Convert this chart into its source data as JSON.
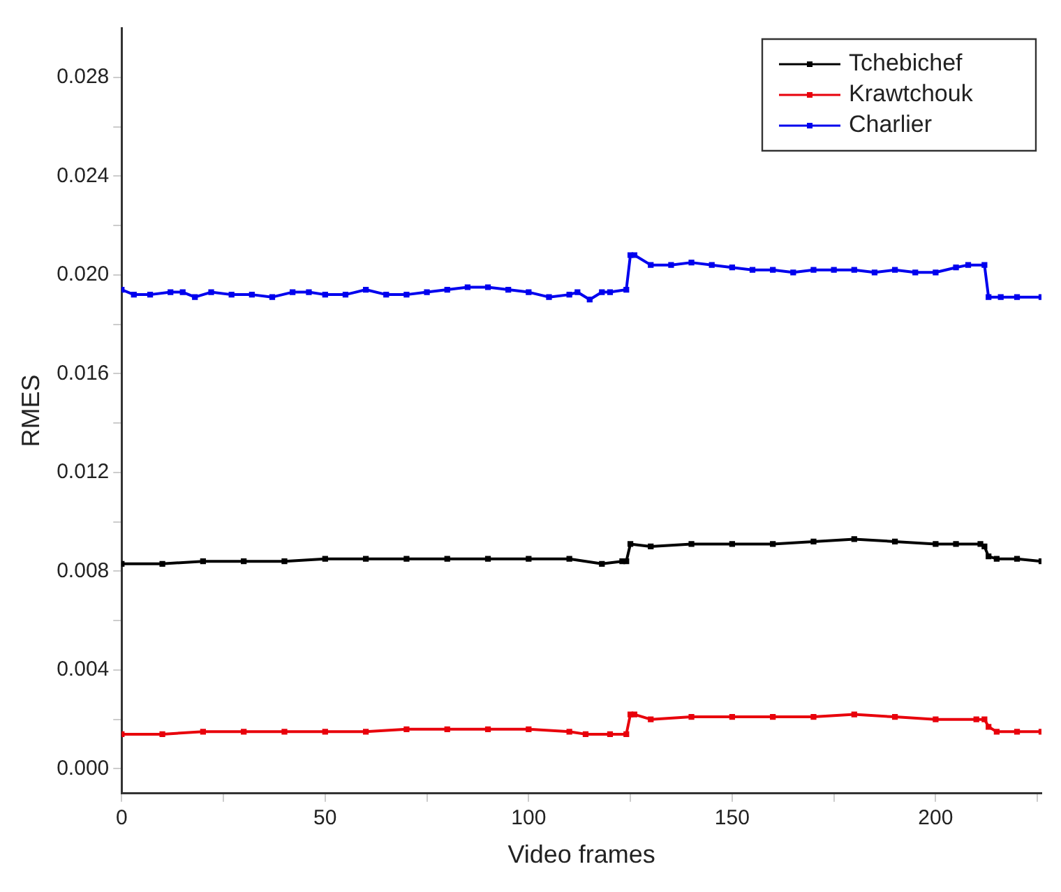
{
  "chart_data": {
    "type": "line",
    "xlabel": "Video frames",
    "ylabel": "RMES",
    "xlim": [
      0,
      226
    ],
    "xticks": [
      0,
      {
        "value": 25,
        "label": null
      },
      50,
      {
        "value": 75,
        "label": null
      },
      100,
      {
        "value": 125,
        "label": null
      },
      150,
      {
        "value": 175,
        "label": null
      },
      200,
      {
        "value": 225,
        "label": null
      }
    ],
    "ylim": [
      -0.001,
      0.03
    ],
    "yticks": [
      {
        "value": 0,
        "label": "0.000"
      },
      {
        "value": 0.002,
        "label": null
      },
      {
        "value": 0.004,
        "label": "0.004"
      },
      {
        "value": 0.006,
        "label": null
      },
      {
        "value": 0.008,
        "label": "0.008"
      },
      {
        "value": 0.01,
        "label": null
      },
      {
        "value": 0.012,
        "label": "0.012"
      },
      {
        "value": 0.014,
        "label": null
      },
      {
        "value": 0.016,
        "label": "0.016"
      },
      {
        "value": 0.018,
        "label": null
      },
      {
        "value": 0.02,
        "label": "0.020"
      },
      {
        "value": 0.022,
        "label": null
      },
      {
        "value": 0.024,
        "label": "0.024"
      },
      {
        "value": 0.026,
        "label": null
      },
      {
        "value": 0.028,
        "label": "0.028"
      }
    ],
    "legend": "top right",
    "marker": "square",
    "line_style": "solid",
    "grid": false,
    "series": [
      {
        "name": "Tchebichef",
        "color": "#000000",
        "x": [
          0,
          10,
          20,
          30,
          40,
          50,
          60,
          70,
          80,
          90,
          100,
          110,
          118,
          123,
          124,
          125,
          130,
          140,
          150,
          160,
          170,
          180,
          190,
          200,
          205,
          211,
          212,
          213,
          215,
          220,
          226
        ],
        "values": [
          0.0083,
          0.0083,
          0.0084,
          0.0084,
          0.0084,
          0.0085,
          0.0085,
          0.0085,
          0.0085,
          0.0085,
          0.0085,
          0.0085,
          0.0083,
          0.0084,
          0.0084,
          0.0091,
          0.009,
          0.0091,
          0.0091,
          0.0091,
          0.0092,
          0.0093,
          0.0092,
          0.0091,
          0.0091,
          0.0091,
          0.009,
          0.0086,
          0.0085,
          0.0085,
          0.0084
        ]
      },
      {
        "name": "Krawtchouk",
        "color": "#e8000b",
        "x": [
          0,
          10,
          20,
          30,
          40,
          50,
          60,
          70,
          80,
          90,
          100,
          110,
          114,
          120,
          124,
          125,
          126,
          130,
          140,
          150,
          160,
          170,
          180,
          190,
          200,
          210,
          212,
          213,
          215,
          220,
          226
        ],
        "values": [
          0.0014,
          0.0014,
          0.0015,
          0.0015,
          0.0015,
          0.0015,
          0.0015,
          0.0016,
          0.0016,
          0.0016,
          0.0016,
          0.0015,
          0.0014,
          0.0014,
          0.0014,
          0.0022,
          0.0022,
          0.002,
          0.0021,
          0.0021,
          0.0021,
          0.0021,
          0.0022,
          0.0021,
          0.002,
          0.002,
          0.002,
          0.0017,
          0.0015,
          0.0015,
          0.0015
        ]
      },
      {
        "name": "Charlier",
        "color": "#0000ee",
        "x": [
          0,
          3,
          7,
          12,
          15,
          18,
          22,
          27,
          32,
          37,
          42,
          46,
          50,
          55,
          60,
          65,
          70,
          75,
          80,
          85,
          90,
          95,
          100,
          105,
          110,
          112,
          115,
          118,
          120,
          124,
          125,
          126,
          130,
          135,
          140,
          145,
          150,
          155,
          160,
          165,
          170,
          175,
          180,
          185,
          190,
          195,
          200,
          205,
          208,
          212,
          213,
          216,
          220,
          226
        ],
        "values": [
          0.0194,
          0.0192,
          0.0192,
          0.0193,
          0.0193,
          0.0191,
          0.0193,
          0.0192,
          0.0192,
          0.0191,
          0.0193,
          0.0193,
          0.0192,
          0.0192,
          0.0194,
          0.0192,
          0.0192,
          0.0193,
          0.0194,
          0.0195,
          0.0195,
          0.0194,
          0.0193,
          0.0191,
          0.0192,
          0.0193,
          0.019,
          0.0193,
          0.0193,
          0.0194,
          0.0208,
          0.0208,
          0.0204,
          0.0204,
          0.0205,
          0.0204,
          0.0203,
          0.0202,
          0.0202,
          0.0201,
          0.0202,
          0.0202,
          0.0202,
          0.0201,
          0.0202,
          0.0201,
          0.0201,
          0.0203,
          0.0204,
          0.0204,
          0.0191,
          0.0191,
          0.0191,
          0.0191
        ]
      }
    ]
  }
}
